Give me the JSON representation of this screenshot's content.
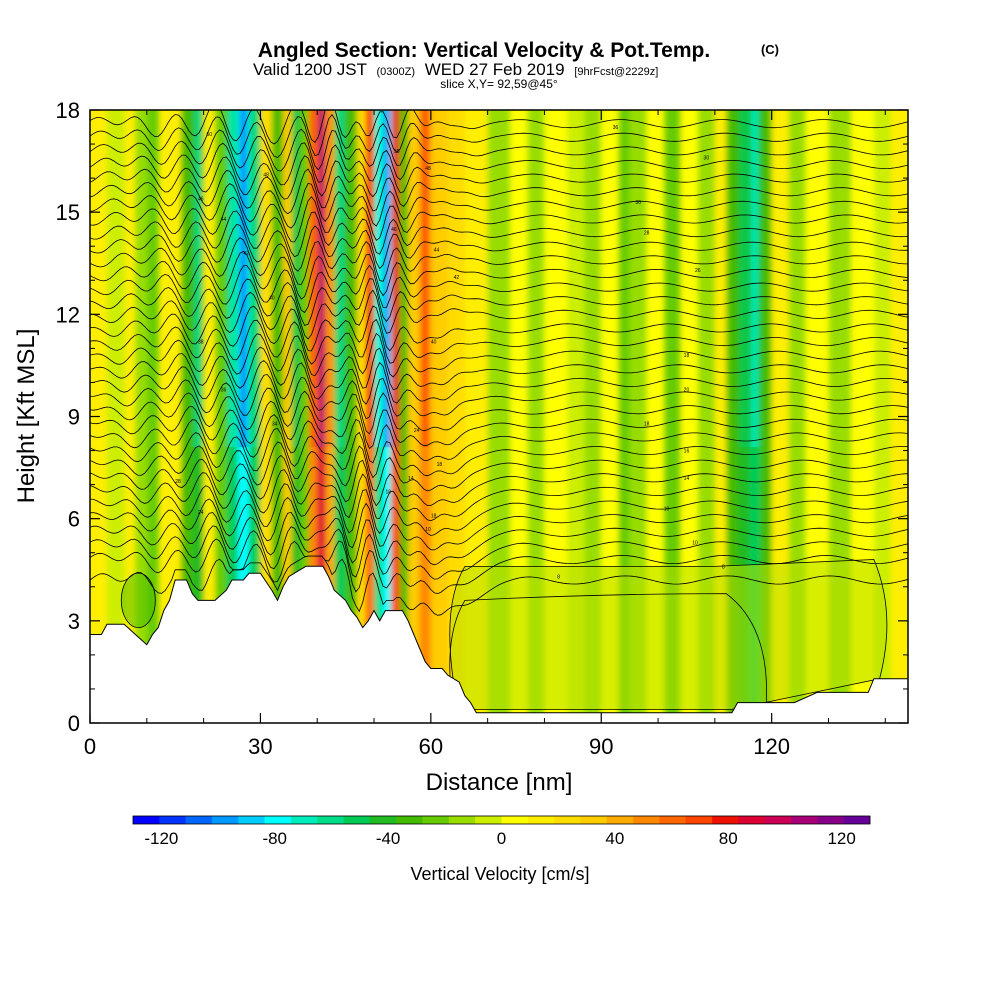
{
  "header": {
    "title": "Angled Section: Vertical Velocity & Pot.Temp.",
    "title_mark": "(C)",
    "valid_prefix": "Valid 1200 JST",
    "valid_utc": "(0300Z)",
    "valid_date": "WED 27 Feb 2019",
    "forecast_info": "[9hrFcst@2229z]",
    "slice_info": "slice X,Y= 92,59@45°"
  },
  "chart_data": {
    "type": "heatmap",
    "title": "Angled Section: Vertical Velocity & Pot.Temp.",
    "xlabel": "Distance [nm]",
    "ylabel": "Height [Kft MSL]",
    "xlim": [
      0,
      144
    ],
    "ylim": [
      0,
      18
    ],
    "x_ticks": [
      "0",
      "30",
      "60",
      "90",
      "120"
    ],
    "y_ticks": [
      "0",
      "3",
      "6",
      "9",
      "12",
      "15",
      "18"
    ],
    "x_tick_values": [
      0,
      30,
      60,
      90,
      120
    ],
    "y_tick_values": [
      0,
      3,
      6,
      9,
      12,
      15,
      18
    ],
    "colorbar": {
      "label": "Vertical Velocity [cm/s]",
      "min": -130,
      "max": 130,
      "tick_labels": [
        "-120",
        "-80",
        "-40",
        "0",
        "40",
        "80",
        "120"
      ],
      "tick_values": [
        -120,
        -80,
        -40,
        0,
        40,
        80,
        120
      ],
      "colors": [
        "#0000ff",
        "#0033ff",
        "#0066ff",
        "#0099ff",
        "#00ccff",
        "#00ffff",
        "#00eebb",
        "#00dd88",
        "#00cc55",
        "#22bb22",
        "#44bb00",
        "#66cc00",
        "#99dd00",
        "#ccee00",
        "#ffff00",
        "#ffee00",
        "#ffdd00",
        "#ffcc00",
        "#ffaa00",
        "#ff8800",
        "#ff6600",
        "#ff4400",
        "#ee1100",
        "#dd0033",
        "#cc0055",
        "#aa0077",
        "#880088",
        "#660099"
      ]
    },
    "terrain_profile": [
      [
        0,
        2.6
      ],
      [
        2,
        2.6
      ],
      [
        3,
        2.9
      ],
      [
        6,
        2.9
      ],
      [
        8,
        2.6
      ],
      [
        10,
        2.3
      ],
      [
        11,
        2.6
      ],
      [
        12,
        2.8
      ],
      [
        13,
        3.3
      ],
      [
        14,
        3.6
      ],
      [
        15,
        4.2
      ],
      [
        17,
        4.2
      ],
      [
        18,
        3.8
      ],
      [
        19,
        3.6
      ],
      [
        22,
        3.6
      ],
      [
        24,
        3.9
      ],
      [
        25,
        4.2
      ],
      [
        27,
        4.2
      ],
      [
        28,
        4.4
      ],
      [
        30,
        4.4
      ],
      [
        32,
        3.9
      ],
      [
        33,
        3.6
      ],
      [
        34,
        4.0
      ],
      [
        35,
        4.3
      ],
      [
        38,
        4.6
      ],
      [
        41,
        4.6
      ],
      [
        42,
        4.3
      ],
      [
        43,
        3.9
      ],
      [
        45,
        3.6
      ],
      [
        46,
        3.3
      ],
      [
        47,
        3.1
      ],
      [
        48,
        2.8
      ],
      [
        49,
        3.0
      ],
      [
        50,
        3.3
      ],
      [
        51,
        3.0
      ],
      [
        52,
        3.3
      ],
      [
        53,
        3.3
      ],
      [
        54,
        3.3
      ],
      [
        55,
        3.3
      ],
      [
        56,
        3.0
      ],
      [
        57,
        2.6
      ],
      [
        59,
        1.8
      ],
      [
        60,
        1.6
      ],
      [
        62,
        1.6
      ],
      [
        63,
        1.4
      ],
      [
        65,
        1.2
      ],
      [
        66,
        0.8
      ],
      [
        67,
        0.6
      ],
      [
        68,
        0.3
      ],
      [
        70,
        0.3
      ],
      [
        113,
        0.3
      ],
      [
        114,
        0.6
      ],
      [
        124,
        0.6
      ],
      [
        128,
        0.9
      ],
      [
        137,
        0.9
      ],
      [
        138,
        1.3
      ],
      [
        144,
        1.3
      ]
    ],
    "vertical_velocity_bands": [
      {
        "x": 3,
        "w": 3,
        "v": -8
      },
      {
        "x": 8,
        "w": 2,
        "v": -15
      },
      {
        "x": 10,
        "w": 2,
        "v": -25
      },
      {
        "x": 14,
        "w": 2,
        "v": 10
      },
      {
        "x": 16,
        "w": 2,
        "v": -30
      },
      {
        "x": 18,
        "w": 2,
        "v": -45
      },
      {
        "x": 20,
        "w": 2,
        "v": 15
      },
      {
        "x": 22,
        "w": 2,
        "v": -20
      },
      {
        "x": 24,
        "w": 2,
        "v": -55
      },
      {
        "x": 26,
        "w": 2,
        "v": -80
      },
      {
        "x": 28,
        "w": 2,
        "v": -50
      },
      {
        "x": 30,
        "w": 2,
        "v": 20
      },
      {
        "x": 32,
        "w": 2,
        "v": -35
      },
      {
        "x": 34,
        "w": 1.5,
        "v": 30
      },
      {
        "x": 35.5,
        "w": 1.5,
        "v": -40
      },
      {
        "x": 37,
        "w": 1.5,
        "v": -20
      },
      {
        "x": 38.5,
        "w": 1.5,
        "v": 50
      },
      {
        "x": 40,
        "w": 1.5,
        "v": 85
      },
      {
        "x": 41.5,
        "w": 1.5,
        "v": 40
      },
      {
        "x": 43,
        "w": 2,
        "v": -50
      },
      {
        "x": 45,
        "w": 2,
        "v": -30
      },
      {
        "x": 47,
        "w": 1.5,
        "v": 20
      },
      {
        "x": 48.5,
        "w": 1.5,
        "v": 60
      },
      {
        "x": 50,
        "w": 1.5,
        "v": -60
      },
      {
        "x": 51.5,
        "w": 1.5,
        "v": -80
      },
      {
        "x": 53,
        "w": 1.5,
        "v": 70
      },
      {
        "x": 54.5,
        "w": 1.5,
        "v": -35
      },
      {
        "x": 56,
        "w": 2,
        "v": 30
      },
      {
        "x": 58,
        "w": 2,
        "v": 50
      },
      {
        "x": 60,
        "w": 3,
        "v": 35
      },
      {
        "x": 63,
        "w": 3,
        "v": 25
      },
      {
        "x": 66,
        "w": 4,
        "v": 12
      },
      {
        "x": 70,
        "w": 4,
        "v": -10
      },
      {
        "x": 74,
        "w": 3,
        "v": 5
      },
      {
        "x": 77,
        "w": 3,
        "v": -12
      },
      {
        "x": 80,
        "w": 4,
        "v": 8
      },
      {
        "x": 84,
        "w": 3,
        "v": -8
      },
      {
        "x": 87,
        "w": 3,
        "v": -15
      },
      {
        "x": 90,
        "w": 3,
        "v": 5
      },
      {
        "x": 93,
        "w": 2,
        "v": -20
      },
      {
        "x": 95,
        "w": 3,
        "v": -10
      },
      {
        "x": 98,
        "w": 3,
        "v": 8
      },
      {
        "x": 101,
        "w": 3,
        "v": -25
      },
      {
        "x": 104,
        "w": 3,
        "v": 5
      },
      {
        "x": 107,
        "w": 3,
        "v": -15
      },
      {
        "x": 110,
        "w": 2,
        "v": 10
      },
      {
        "x": 112,
        "w": 2,
        "v": -30
      },
      {
        "x": 114,
        "w": 2,
        "v": -40
      },
      {
        "x": 116,
        "w": 2,
        "v": -55
      },
      {
        "x": 118,
        "w": 2,
        "v": -35
      },
      {
        "x": 120,
        "w": 3,
        "v": 10
      },
      {
        "x": 123,
        "w": 3,
        "v": -12
      },
      {
        "x": 126,
        "w": 4,
        "v": 8
      },
      {
        "x": 130,
        "w": 4,
        "v": -10
      },
      {
        "x": 134,
        "w": 4,
        "v": 5
      },
      {
        "x": 138,
        "w": 3,
        "v": -8
      },
      {
        "x": 141,
        "w": 3,
        "v": 10
      }
    ],
    "isentrope_base_heights": [
      4.2,
      4.8,
      5.2,
      5.6,
      6.0,
      6.4,
      6.8,
      7.2,
      7.6,
      8.0,
      8.4,
      8.8,
      9.2,
      9.6,
      10.0,
      10.4,
      10.8,
      11.2,
      11.6,
      12.0,
      12.4,
      12.8,
      13.2,
      13.6,
      14.0,
      14.4,
      14.8,
      15.2,
      15.6,
      16.0,
      16.4,
      16.8,
      17.2,
      17.6
    ],
    "contour_labels": [
      {
        "x": 21,
        "y": 17.3,
        "text": "50"
      },
      {
        "x": 31,
        "y": 16.1,
        "text": "48"
      },
      {
        "x": 19.5,
        "y": 15.4,
        "text": "46"
      },
      {
        "x": 23.5,
        "y": 14.8,
        "text": "44"
      },
      {
        "x": 27.5,
        "y": 13.8,
        "text": "42"
      },
      {
        "x": 32,
        "y": 12.5,
        "text": "40"
      },
      {
        "x": 19.5,
        "y": 11.2,
        "text": "38"
      },
      {
        "x": 23.5,
        "y": 9.8,
        "text": "36"
      },
      {
        "x": 32.5,
        "y": 8.8,
        "text": "34"
      },
      {
        "x": 15.5,
        "y": 7.1,
        "text": "28"
      },
      {
        "x": 19.5,
        "y": 6.2,
        "text": "24"
      },
      {
        "x": 54,
        "y": 16.8,
        "text": "50"
      },
      {
        "x": 59.5,
        "y": 16.3,
        "text": "48"
      },
      {
        "x": 53.5,
        "y": 14.5,
        "text": "46"
      },
      {
        "x": 61,
        "y": 13.9,
        "text": "44"
      },
      {
        "x": 64.5,
        "y": 13.1,
        "text": "42"
      },
      {
        "x": 60.5,
        "y": 11.2,
        "text": "40"
      },
      {
        "x": 57.5,
        "y": 8.6,
        "text": "24"
      },
      {
        "x": 61.5,
        "y": 7.6,
        "text": "18"
      },
      {
        "x": 56.5,
        "y": 7.2,
        "text": "14"
      },
      {
        "x": 52.5,
        "y": 6.8,
        "text": "10"
      },
      {
        "x": 60.5,
        "y": 6.1,
        "text": "18"
      },
      {
        "x": 59.5,
        "y": 5.7,
        "text": "10"
      },
      {
        "x": 92.5,
        "y": 17.5,
        "text": "36"
      },
      {
        "x": 108.5,
        "y": 16.6,
        "text": "30"
      },
      {
        "x": 96.5,
        "y": 15.3,
        "text": "30"
      },
      {
        "x": 98,
        "y": 14.4,
        "text": "28"
      },
      {
        "x": 107,
        "y": 13.3,
        "text": "26"
      },
      {
        "x": 105,
        "y": 10.8,
        "text": "18"
      },
      {
        "x": 105,
        "y": 9.8,
        "text": "20"
      },
      {
        "x": 98,
        "y": 8.8,
        "text": "18"
      },
      {
        "x": 105,
        "y": 8.0,
        "text": "16"
      },
      {
        "x": 105,
        "y": 7.2,
        "text": "14"
      },
      {
        "x": 101.5,
        "y": 6.3,
        "text": "10"
      },
      {
        "x": 106.5,
        "y": 5.3,
        "text": "10"
      },
      {
        "x": 111.5,
        "y": 4.6,
        "text": "8"
      },
      {
        "x": 82.5,
        "y": 4.3,
        "text": "8"
      }
    ]
  }
}
